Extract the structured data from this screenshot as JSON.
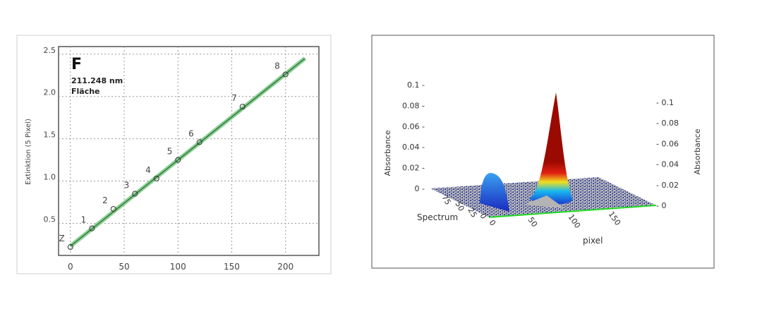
{
  "chart_data": [
    {
      "type": "scatter",
      "title": "F",
      "subtitle": [
        "211.248 nm",
        "Fläche"
      ],
      "xlabel": "",
      "ylabel": "Extinktion (5 Pixel)",
      "xlim": [
        -11,
        231
      ],
      "ylim": [
        0.12,
        2.59
      ],
      "xticks": [
        "0",
        "50",
        "100",
        "150",
        "200"
      ],
      "xtick_values": [
        0,
        50,
        100,
        150,
        200
      ],
      "yticks": [
        "0.5",
        "1.0",
        "1.5",
        "2.0",
        "2.5"
      ],
      "ytick_values": [
        0.5,
        1.0,
        1.5,
        2.0,
        2.5
      ],
      "grid": true,
      "points": [
        {
          "label": "Z",
          "x": 0,
          "y": 0.22
        },
        {
          "label": "1",
          "x": 20,
          "y": 0.44
        },
        {
          "label": "2",
          "x": 40,
          "y": 0.67
        },
        {
          "label": "3",
          "x": 60,
          "y": 0.85
        },
        {
          "label": "4",
          "x": 80,
          "y": 1.03
        },
        {
          "label": "5",
          "x": 100,
          "y": 1.25
        },
        {
          "label": "6",
          "x": 120,
          "y": 1.46
        },
        {
          "label": "7",
          "x": 160,
          "y": 1.88
        },
        {
          "label": "8",
          "x": 200,
          "y": 2.26
        }
      ],
      "fit_line": {
        "x": [
          0,
          218
        ],
        "y": [
          0.23,
          2.45
        ]
      },
      "colors": {
        "fit": "#2e7d3e",
        "fit_band": "#8fcf96",
        "points": "#333333"
      }
    },
    {
      "type": "surface",
      "zlabel_left": "Absorbance",
      "zlabel_right": "Absorbance",
      "xlabel": "pixel",
      "ylabel": "Spectrum",
      "zticks_left": [
        "0",
        "0.02",
        "0.04",
        "0.06",
        "0.08",
        "0.1"
      ],
      "zticks_right": [
        "0",
        "0.02",
        "0.04",
        "0.06",
        "0.08",
        "0.1"
      ],
      "ztick_values": [
        0,
        0.02,
        0.04,
        0.06,
        0.08,
        0.1
      ],
      "xticks": [
        "0",
        "50",
        "100",
        "150"
      ],
      "yticks": [
        "0",
        "25",
        "50",
        "75"
      ],
      "peaks": [
        {
          "pixel": 85,
          "absorbance": 0.092
        },
        {
          "pixel": 25,
          "absorbance": 0.012
        }
      ],
      "colors": {
        "floor": "#b4b4b4",
        "noise": "#1a2a9a",
        "peak": "#9b0a00",
        "edge": "#22dd22"
      }
    }
  ]
}
